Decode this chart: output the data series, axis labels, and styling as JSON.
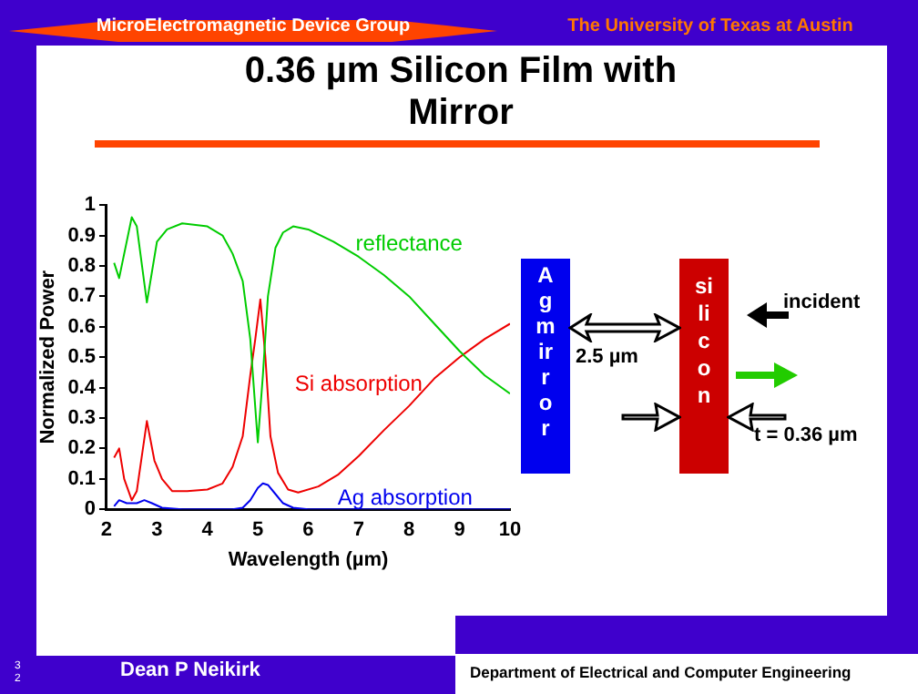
{
  "chart_data": {
    "type": "line",
    "title": "0.36 µm Silicon Film with Mirror",
    "xlabel": "Wavelength (µm)",
    "ylabel": "Normalized Power",
    "xlim": [
      2,
      10
    ],
    "xticks": [
      2,
      3,
      4,
      5,
      6,
      7,
      8,
      9,
      10
    ],
    "ylim": [
      0,
      1
    ],
    "yticks": [
      0,
      0.1,
      0.2,
      0.3,
      0.4,
      0.5,
      0.6,
      0.7,
      0.8,
      0.9,
      1
    ],
    "grid": false,
    "legend": false,
    "marker": "none",
    "line_style": "solid",
    "series": [
      {
        "name": "reflectance",
        "color": "#00cc00",
        "x": [
          2.15,
          2.25,
          2.5,
          2.6,
          2.8,
          3.0,
          3.2,
          3.5,
          4.0,
          4.3,
          4.5,
          4.7,
          4.85,
          5.0,
          5.1,
          5.2,
          5.35,
          5.5,
          5.7,
          6.0,
          6.5,
          7,
          7.5,
          8,
          8.5,
          9,
          9.5,
          10
        ],
        "values": [
          0.81,
          0.76,
          0.96,
          0.93,
          0.68,
          0.88,
          0.92,
          0.94,
          0.93,
          0.9,
          0.84,
          0.75,
          0.56,
          0.22,
          0.44,
          0.7,
          0.86,
          0.91,
          0.93,
          0.92,
          0.88,
          0.83,
          0.77,
          0.7,
          0.61,
          0.52,
          0.44,
          0.38
        ]
      },
      {
        "name": "Si absorption",
        "color": "#ee0000",
        "x": [
          2.15,
          2.25,
          2.35,
          2.5,
          2.6,
          2.8,
          2.95,
          3.1,
          3.3,
          3.6,
          4.0,
          4.3,
          4.5,
          4.7,
          4.85,
          4.95,
          5.05,
          5.15,
          5.25,
          5.4,
          5.6,
          5.8,
          6.2,
          6.6,
          7,
          7.5,
          8,
          8.5,
          9,
          9.5,
          10
        ],
        "values": [
          0.17,
          0.2,
          0.1,
          0.03,
          0.06,
          0.29,
          0.16,
          0.1,
          0.06,
          0.06,
          0.065,
          0.085,
          0.14,
          0.24,
          0.44,
          0.56,
          0.69,
          0.5,
          0.24,
          0.12,
          0.065,
          0.055,
          0.075,
          0.115,
          0.175,
          0.26,
          0.34,
          0.43,
          0.5,
          0.56,
          0.61
        ]
      },
      {
        "name": "Ag absorption",
        "color": "#0000ee",
        "x": [
          2.15,
          2.25,
          2.4,
          2.6,
          2.75,
          2.9,
          3.1,
          3.5,
          4.5,
          4.7,
          4.85,
          5.0,
          5.1,
          5.2,
          5.35,
          5.5,
          5.7,
          6.0,
          10
        ],
        "values": [
          0.01,
          0.03,
          0.02,
          0.02,
          0.03,
          0.02,
          0.005,
          0,
          0,
          0.005,
          0.03,
          0.07,
          0.085,
          0.08,
          0.05,
          0.02,
          0.005,
          0,
          0
        ]
      }
    ],
    "annotations": [
      "MicroElectromagnetic Device Group",
      "The University of Texas at Austin",
      "Ag mirror",
      "silicon",
      "2.5 µm",
      "incident",
      "t = 0.36 µm",
      "Dean P Neikirk",
      "Department of Electrical and Computer Engineering",
      "32"
    ]
  }
}
